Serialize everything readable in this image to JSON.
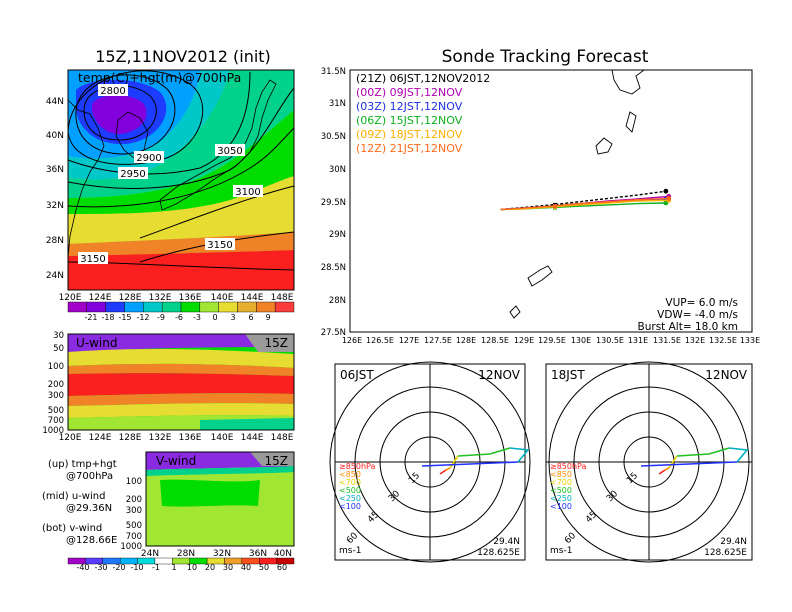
{
  "chart_data": [
    {
      "type": "heatmap",
      "title": "15Z,11NOV2012 (init)",
      "subtitle": "temp(C)+hgt(m)@700hPa",
      "xticks": [
        "120E",
        "124E",
        "128E",
        "132E",
        "136E",
        "140E",
        "144E",
        "148E"
      ],
      "yticks": [
        "24N",
        "28N",
        "32N",
        "36N",
        "40N",
        "44N"
      ],
      "contour_labels": [
        "2800",
        "2900",
        "2950",
        "3050",
        "3100",
        "3150",
        "3150"
      ],
      "colorbar": [
        "-21",
        "-18",
        "-15",
        "-12",
        "-9",
        "-6",
        "-3",
        "0",
        "3",
        "6",
        "9"
      ],
      "colors": [
        "#a000c8",
        "#8200dc",
        "#1e3cff",
        "#00a0ff",
        "#00c8c8",
        "#00d28c",
        "#00dc00",
        "#a0e632",
        "#e6dc32",
        "#e6af2d",
        "#f08228",
        "#fa3c3c"
      ]
    },
    {
      "type": "heatmap",
      "title": "U-wind",
      "time_label": "15Z",
      "xticks": [
        "120E",
        "124E",
        "128E",
        "132E",
        "136E",
        "140E",
        "144E",
        "148E"
      ],
      "yticks": [
        "30",
        "50",
        "100",
        "200",
        "300",
        "500",
        "700",
        "1000"
      ]
    },
    {
      "type": "heatmap",
      "title": "V-wind",
      "time_label": "15Z",
      "xticks": [
        "24N",
        "28N",
        "32N",
        "36N",
        "40N"
      ],
      "yticks": [
        "100",
        "200",
        "300",
        "500",
        "700",
        "1000"
      ],
      "colorbar": [
        "-40",
        "-30",
        "-20",
        "-10",
        "-1",
        "1",
        "10",
        "20",
        "30",
        "40",
        "50",
        "60"
      ]
    },
    {
      "type": "line",
      "title": "Sonde Tracking Forecast",
      "xticks": [
        "126E",
        "126.5E",
        "127E",
        "127.5E",
        "128E",
        "128.5E",
        "129E",
        "129.5E",
        "130E",
        "130.5E",
        "131E",
        "131.5E",
        "132E",
        "132.5E",
        "133E"
      ],
      "yticks": [
        "27.5N",
        "28N",
        "28.5N",
        "29N",
        "29.5N",
        "30N",
        "30.5N",
        "31N",
        "31.5N"
      ],
      "xlim": [
        126,
        133
      ],
      "ylim": [
        27.5,
        31.5
      ],
      "legend_position": "top-left",
      "series": [
        {
          "name": "(21Z) 06JST,12NOV2012",
          "color": "#000000",
          "x": [
            128.62,
            129.0,
            129.5,
            130.0,
            130.5,
            131.0,
            131.5
          ],
          "y": [
            29.37,
            29.4,
            29.44,
            29.49,
            29.54,
            29.59,
            29.65
          ]
        },
        {
          "name": "(00Z) 09JST,12NOV",
          "color": "#b000b0",
          "x": [
            128.62,
            129.0,
            129.5,
            130.0,
            130.5,
            131.0,
            131.55
          ],
          "y": [
            29.37,
            29.39,
            29.42,
            29.46,
            29.5,
            29.53,
            29.57
          ]
        },
        {
          "name": "(03Z) 12JST,12NOV",
          "color": "#2030e0",
          "x": [
            128.62,
            129.0,
            129.5,
            130.0,
            130.5,
            131.0,
            131.5
          ],
          "y": [
            29.37,
            29.39,
            29.42,
            29.45,
            29.48,
            29.51,
            29.53
          ]
        },
        {
          "name": "(06Z) 15JST,12NOV",
          "color": "#10b020",
          "x": [
            128.62,
            129.0,
            129.5,
            130.0,
            130.5,
            131.0,
            131.5
          ],
          "y": [
            29.37,
            29.38,
            29.4,
            29.42,
            29.44,
            29.46,
            29.47
          ]
        },
        {
          "name": "(09Z) 18JST,12NOV",
          "color": "#ffb000",
          "x": [
            128.62,
            129.0,
            129.5,
            130.0,
            130.5,
            131.0,
            131.55
          ],
          "y": [
            29.37,
            29.38,
            29.41,
            29.44,
            29.47,
            29.5,
            29.51
          ]
        },
        {
          "name": "(12Z) 21JST,12NOV",
          "color": "#ff6a1a",
          "x": [
            128.62,
            129.0,
            129.5,
            130.0,
            130.5,
            131.0,
            131.55
          ],
          "y": [
            29.37,
            29.39,
            29.42,
            29.46,
            29.49,
            29.52,
            29.54
          ]
        }
      ],
      "annotations": [
        "VUP= 6.0 m/s",
        "VDW= -4.0 m/s",
        "Burst Alt= 18.0 km"
      ]
    },
    {
      "type": "line",
      "title": "06JST",
      "date_label": "12NOV",
      "ring_labels": [
        "15",
        "30",
        "45",
        "60"
      ],
      "level_legend": [
        "≥850hPa",
        "<850",
        "<700",
        "<500",
        "<250",
        "<100"
      ],
      "level_colors": [
        "#ff2020",
        "#ff9000",
        "#e8d000",
        "#20c020",
        "#00b0c0",
        "#2030ff"
      ],
      "corner_labels": [
        "ms-1",
        "29.4N",
        "128.625E"
      ]
    },
    {
      "type": "line",
      "title": "18JST",
      "date_label": "12NOV",
      "ring_labels": [
        "15",
        "30",
        "45",
        "60"
      ],
      "level_legend": [
        "≥850hPa",
        "<850",
        "<700",
        "<500",
        "<250",
        "<100"
      ],
      "level_colors": [
        "#ff2020",
        "#ff9000",
        "#e8d000",
        "#20c020",
        "#00b0c0",
        "#2030ff"
      ],
      "corner_labels": [
        "ms-1",
        "29.4N",
        "128.625E"
      ]
    }
  ],
  "notes": {
    "line1": "(up) tmp+hgt",
    "line2": "@700hPa",
    "line3": "(mid) u-wind",
    "line4": "@29.36N",
    "line5": "(bot) v-wind",
    "line6": "@128.66E"
  }
}
